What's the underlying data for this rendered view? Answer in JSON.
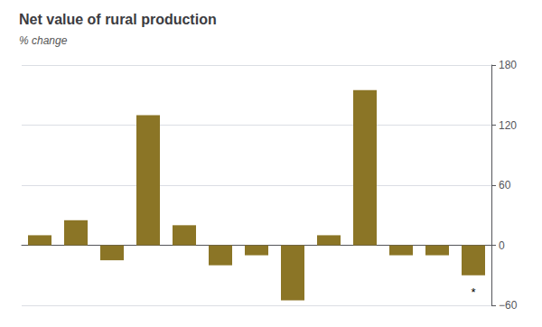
{
  "chart_data": {
    "type": "bar",
    "title": "Net value of rural production",
    "subtitle": "% change",
    "categories": [
      null,
      null,
      null,
      null,
      null,
      null,
      null,
      null,
      null,
      null,
      null,
      null,
      null
    ],
    "values": [
      10,
      25,
      -15,
      130,
      20,
      -20,
      -10,
      -55,
      10,
      155,
      -10,
      -10,
      -30
    ],
    "color": "#8B7526",
    "ylim": [
      -60,
      180
    ],
    "yticks": [
      {
        "value": -60,
        "label": "−60"
      },
      0,
      60,
      120,
      180
    ],
    "grid": true,
    "annotations": [
      {
        "text": "*",
        "category": 12,
        "y": -57
      }
    ]
  }
}
